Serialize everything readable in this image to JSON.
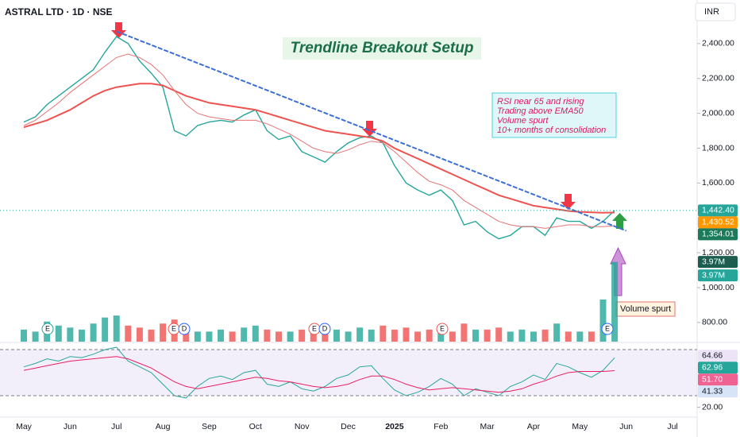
{
  "chart_data": [
    {
      "type": "line",
      "title": "ASTRAL LTD · 1D · NSE",
      "currency": "INR",
      "annotation": "Trendline Breakout Setup",
      "notes": [
        "RSI near 65 and rising",
        "Trading above EMA50",
        "Volume spurt",
        "10+ months of consolidation"
      ],
      "volume_note": "Volume spurt",
      "categories": [
        "May",
        null,
        null,
        null,
        "Jun",
        null,
        null,
        null,
        "Jul",
        null,
        null,
        null,
        "Aug",
        null,
        null,
        null,
        "Sep",
        null,
        null,
        null,
        "Oct",
        null,
        null,
        null,
        "Nov",
        null,
        null,
        null,
        "Dec",
        null,
        null,
        null,
        "2025",
        null,
        null,
        null,
        "Feb",
        null,
        null,
        null,
        "Mar",
        null,
        null,
        null,
        "Apr",
        null,
        null,
        null,
        "May",
        null,
        null,
        null,
        "Jun",
        null,
        null,
        null,
        "Jul",
        null,
        null,
        null
      ],
      "ylim": [
        690,
        2650
      ],
      "yticks": [
        {
          "value": 800,
          "label": "800.00"
        },
        {
          "value": 1000,
          "label": "1,000.00"
        },
        {
          "value": 1200,
          "label": "1,200.00"
        },
        {
          "value": 1600,
          "label": "1,600.00"
        },
        {
          "value": 1800,
          "label": "1,800.00"
        },
        {
          "value": 2000,
          "label": "2,000.00"
        },
        {
          "value": 2200,
          "label": "2,200.00"
        },
        {
          "value": 2400,
          "label": "2,400.00"
        }
      ],
      "series": [
        {
          "color": "#26a69a",
          "width": 1.4,
          "values": [
            1950,
            1980,
            2050,
            2100,
            2150,
            2200,
            2250,
            2350,
            2440,
            2400,
            2300,
            2230,
            2150,
            1900,
            1870,
            1930,
            1950,
            1960,
            1950,
            1990,
            2020,
            1900,
            1850,
            1870,
            1780,
            1750,
            1720,
            1780,
            1830,
            1860,
            1870,
            1830,
            1700,
            1600,
            1560,
            1530,
            1560,
            1500,
            1360,
            1380,
            1320,
            1280,
            1300,
            1350,
            1350,
            1300,
            1400,
            1380,
            1380,
            1340,
            1380,
            1442.4,
            null,
            null,
            null,
            null,
            null,
            null,
            null,
            null
          ]
        },
        {
          "color": "#ef5350",
          "width": 2,
          "values": [
            1920,
            1940,
            1960,
            1990,
            2020,
            2060,
            2100,
            2130,
            2150,
            2160,
            2170,
            2170,
            2160,
            2130,
            2100,
            2080,
            2060,
            2050,
            2040,
            2030,
            2020,
            2000,
            1980,
            1960,
            1940,
            1920,
            1900,
            1890,
            1880,
            1870,
            1860,
            1840,
            1800,
            1770,
            1740,
            1710,
            1680,
            1650,
            1620,
            1590,
            1560,
            1530,
            1510,
            1490,
            1470,
            1460,
            1450,
            1440,
            1435,
            1432,
            1430,
            1430.52,
            null,
            null,
            null,
            null,
            null,
            null,
            null,
            null
          ]
        },
        {
          "color": "#e57373",
          "width": 1,
          "values": [
            1930,
            1960,
            2010,
            2060,
            2120,
            2170,
            2220,
            2270,
            2320,
            2340,
            2320,
            2280,
            2220,
            2130,
            2050,
            2000,
            1980,
            1970,
            1960,
            1960,
            1960,
            1940,
            1910,
            1880,
            1840,
            1800,
            1780,
            1770,
            1790,
            1820,
            1840,
            1830,
            1780,
            1720,
            1660,
            1610,
            1590,
            1560,
            1500,
            1460,
            1420,
            1380,
            1360,
            1350,
            1350,
            1340,
            1350,
            1360,
            1360,
            1350,
            1350,
            1354.01,
            null,
            null,
            null,
            null,
            null,
            null,
            null,
            null
          ]
        },
        {
          "color": "#3d6fd6",
          "width": 2,
          "dash": true,
          "values": [
            null,
            null,
            null,
            null,
            null,
            null,
            null,
            null,
            2470,
            2444,
            2418,
            2392,
            2366,
            2340,
            2314,
            2288,
            2262,
            2236,
            2210,
            2184,
            2158,
            2132,
            2106,
            2080,
            2054,
            2028,
            2002,
            1976,
            1950,
            1924,
            1898,
            1872,
            1846,
            1820,
            1794,
            1768,
            1742,
            1716,
            1690,
            1664,
            1638,
            1612,
            1586,
            1560,
            1534,
            1508,
            1482,
            1456,
            1430,
            1404,
            1378,
            1352,
            1326,
            null,
            null,
            null,
            null,
            null,
            null,
            null
          ]
        }
      ],
      "volume": {
        "up_color": "#26a69a",
        "down_color": "#ef5350",
        "values": [
          600000,
          500000,
          1000000,
          800000,
          700000,
          600000,
          900000,
          1200000,
          1300000,
          800000,
          700000,
          600000,
          900000,
          1100000,
          700000,
          500000,
          500000,
          600000,
          500000,
          700000,
          800000,
          600000,
          500000,
          500000,
          600000,
          500000,
          500000,
          600000,
          500000,
          700000,
          600000,
          800000,
          600000,
          700000,
          500000,
          600000,
          700000,
          500000,
          900000,
          600000,
          600000,
          700000,
          500000,
          600000,
          500000,
          600000,
          900000,
          500000,
          500000,
          500000,
          2100000,
          3970000,
          null,
          null,
          null,
          null,
          null,
          null,
          null,
          null
        ]
      },
      "y2lim": [
        0,
        17000000
      ],
      "price_tags": [
        {
          "value": 1442.4,
          "label": "1,442.40",
          "color": "#26a69a"
        },
        {
          "value": 1430.52,
          "label": "1,430.52",
          "color": "#ff9800"
        },
        {
          "value": 1354.01,
          "label": "1,354.01",
          "color": "#1b7a5a"
        }
      ],
      "volume_tags": [
        {
          "value": 3970000,
          "label": "3.97M",
          "color": "#1b5e50"
        },
        {
          "value": 3970000,
          "label": "3.97M",
          "color": "#26a69a"
        }
      ],
      "events": [
        "E",
        "E",
        "D",
        "E",
        "D",
        "E",
        "E"
      ]
    },
    {
      "type": "line",
      "ylim": [
        11.4,
        75.5
      ],
      "yticks": [
        {
          "value": 20,
          "label": "20.00"
        }
      ],
      "levels": [
        30,
        70
      ],
      "series": [
        {
          "color": "#26a69a",
          "width": 1,
          "values": [
            55,
            58,
            62,
            60,
            64,
            63,
            66,
            70,
            72,
            60,
            55,
            50,
            40,
            30,
            28,
            38,
            45,
            47,
            44,
            50,
            52,
            40,
            38,
            42,
            36,
            34,
            38,
            45,
            48,
            55,
            56,
            45,
            35,
            30,
            33,
            38,
            45,
            40,
            30,
            36,
            33,
            30,
            38,
            42,
            48,
            44,
            58,
            55,
            50,
            46,
            52,
            62.96,
            null,
            null,
            null,
            null,
            null,
            null,
            null,
            null
          ]
        },
        {
          "color": "#e91e63",
          "width": 1,
          "values": [
            52,
            54,
            56,
            58,
            60,
            61,
            62,
            63,
            64,
            62,
            58,
            54,
            48,
            42,
            38,
            36,
            38,
            40,
            42,
            44,
            46,
            45,
            43,
            42,
            40,
            38,
            37,
            38,
            40,
            44,
            47,
            47,
            44,
            40,
            37,
            35,
            36,
            37,
            36,
            35,
            34,
            33,
            34,
            36,
            40,
            43,
            47,
            50,
            51,
            51,
            51,
            51.7,
            null,
            null,
            null,
            null,
            null,
            null,
            null,
            null
          ]
        }
      ],
      "tags": [
        {
          "value": 64.66,
          "label": "64.66",
          "color": "#ede3f7"
        },
        {
          "value": 62.96,
          "label": "62.96",
          "color": "#26a69a"
        },
        {
          "value": 51.7,
          "label": "51.70",
          "color": "#f06292"
        },
        {
          "value": 41.33,
          "label": "41.33",
          "color": "#d7e3f7"
        }
      ]
    }
  ]
}
